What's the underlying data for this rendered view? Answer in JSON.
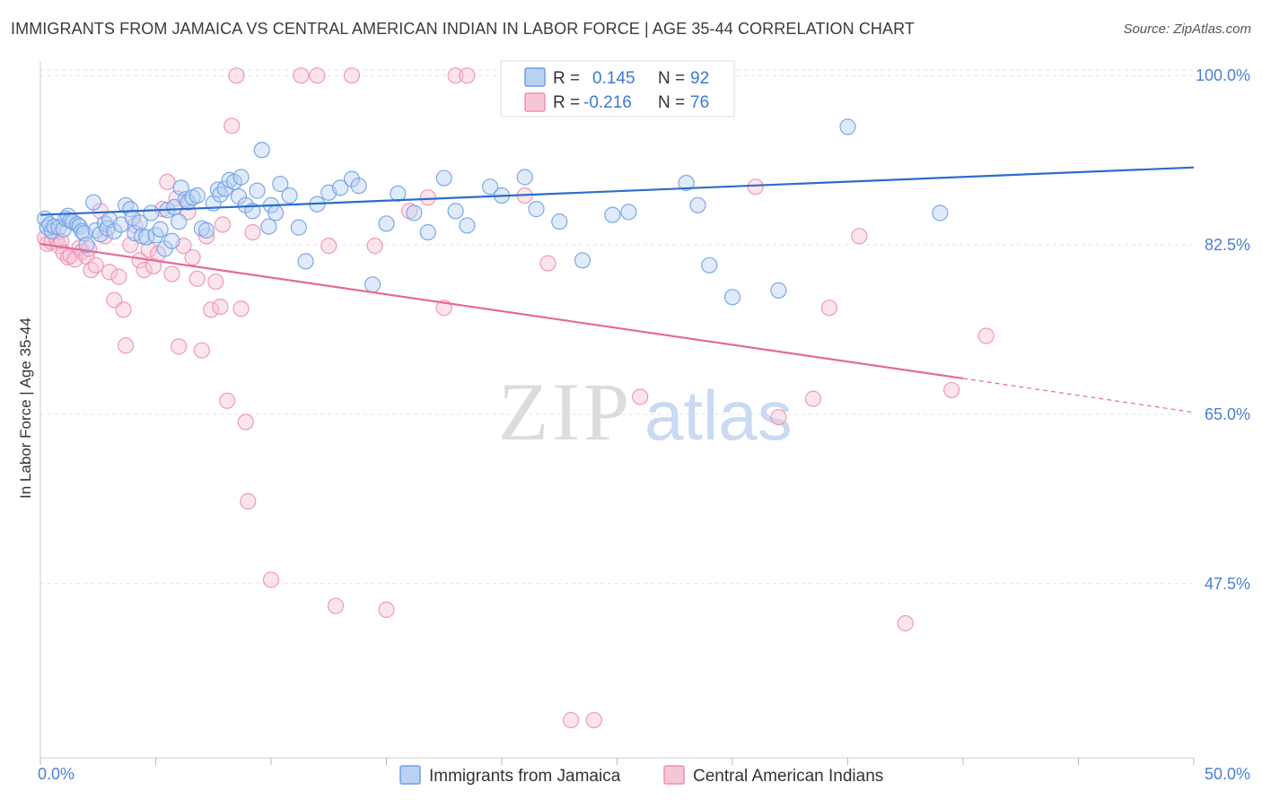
{
  "title": "IMMIGRANTS FROM JAMAICA VS CENTRAL AMERICAN INDIAN IN LABOR FORCE | AGE 35-44 CORRELATION CHART",
  "source": "Source: ZipAtlas.com",
  "watermark": {
    "zip": "ZIP",
    "atlas": "atlas"
  },
  "colors": {
    "blue": "#6fa0e6",
    "blue_fill": "#b9d1f3",
    "blue_line": "#2b6dcc",
    "pink": "#ef8fb0",
    "pink_fill": "#f7c6d6",
    "pink_line": "#e76895"
  },
  "legend": {
    "r_label": "R =",
    "n_label": "N =",
    "series": [
      {
        "r": "0.145",
        "n": "92"
      },
      {
        "r": "-0.216",
        "n": "76"
      }
    ]
  },
  "chart_data": {
    "type": "scatter",
    "xlabel": "",
    "ylabel": "In Labor Force | Age 35-44",
    "xlim": [
      0,
      50
    ],
    "ylim": [
      29.5,
      101.5
    ],
    "x_tick_labels": [
      "0.0%",
      "50.0%"
    ],
    "y_ticks": [
      100,
      82.5,
      65,
      47.5
    ],
    "y_tick_labels": [
      "100.0%",
      "82.5%",
      "65.0%",
      "47.5%"
    ],
    "grid": true,
    "legend_position": "bottom",
    "series": [
      {
        "name": "Immigrants from Jamaica",
        "trend": {
          "x": [
            0,
            50
          ],
          "y": [
            85.6,
            90.5
          ]
        },
        "points": [
          [
            0.2,
            85.2
          ],
          [
            0.3,
            84.3
          ],
          [
            0.4,
            84.6
          ],
          [
            0.5,
            83.9
          ],
          [
            0.6,
            84.4
          ],
          [
            0.8,
            84.3
          ],
          [
            1.0,
            84.1
          ],
          [
            1.1,
            85.2
          ],
          [
            1.2,
            85.5
          ],
          [
            1.3,
            85.0
          ],
          [
            1.4,
            84.9
          ],
          [
            1.6,
            84.6
          ],
          [
            1.7,
            84.4
          ],
          [
            1.8,
            83.9
          ],
          [
            1.9,
            83.7
          ],
          [
            2.0,
            82.5
          ],
          [
            2.3,
            86.9
          ],
          [
            2.4,
            84.0
          ],
          [
            2.6,
            83.6
          ],
          [
            2.8,
            84.7
          ],
          [
            2.9,
            84.2
          ],
          [
            3.0,
            85.1
          ],
          [
            3.2,
            83.9
          ],
          [
            3.5,
            84.6
          ],
          [
            3.7,
            86.6
          ],
          [
            3.9,
            86.2
          ],
          [
            4.0,
            85.3
          ],
          [
            4.1,
            83.7
          ],
          [
            4.3,
            84.8
          ],
          [
            4.4,
            83.4
          ],
          [
            4.6,
            83.3
          ],
          [
            4.8,
            85.8
          ],
          [
            5.0,
            83.5
          ],
          [
            5.2,
            84.1
          ],
          [
            5.4,
            82.1
          ],
          [
            5.5,
            86.1
          ],
          [
            5.7,
            82.9
          ],
          [
            5.8,
            86.4
          ],
          [
            6.0,
            84.9
          ],
          [
            6.1,
            88.4
          ],
          [
            6.3,
            87.2
          ],
          [
            6.4,
            86.9
          ],
          [
            6.6,
            87.4
          ],
          [
            6.8,
            87.6
          ],
          [
            7.0,
            84.2
          ],
          [
            7.2,
            84.0
          ],
          [
            7.5,
            86.8
          ],
          [
            7.7,
            88.2
          ],
          [
            7.8,
            87.7
          ],
          [
            8.0,
            88.3
          ],
          [
            8.2,
            89.2
          ],
          [
            8.4,
            89.0
          ],
          [
            8.6,
            87.5
          ],
          [
            8.7,
            89.5
          ],
          [
            8.9,
            86.6
          ],
          [
            9.2,
            86.0
          ],
          [
            9.4,
            88.1
          ],
          [
            9.6,
            92.3
          ],
          [
            9.9,
            84.4
          ],
          [
            10.0,
            86.6
          ],
          [
            10.2,
            85.8
          ],
          [
            10.4,
            88.8
          ],
          [
            10.8,
            87.6
          ],
          [
            11.2,
            84.3
          ],
          [
            11.5,
            80.8
          ],
          [
            12.0,
            86.7
          ],
          [
            12.5,
            87.9
          ],
          [
            13.0,
            88.4
          ],
          [
            13.5,
            89.3
          ],
          [
            13.8,
            88.6
          ],
          [
            14.4,
            78.4
          ],
          [
            15.0,
            84.7
          ],
          [
            15.5,
            87.8
          ],
          [
            16.2,
            85.8
          ],
          [
            16.8,
            83.8
          ],
          [
            17.5,
            89.4
          ],
          [
            18.0,
            86.0
          ],
          [
            18.5,
            84.5
          ],
          [
            19.5,
            88.5
          ],
          [
            20.0,
            87.6
          ],
          [
            21.0,
            89.5
          ],
          [
            21.5,
            86.2
          ],
          [
            22.5,
            84.9
          ],
          [
            23.5,
            80.9
          ],
          [
            24.8,
            85.6
          ],
          [
            25.5,
            85.9
          ],
          [
            28.0,
            88.9
          ],
          [
            28.5,
            86.6
          ],
          [
            29.0,
            80.4
          ],
          [
            30.0,
            77.1
          ],
          [
            32.0,
            77.8
          ],
          [
            35.0,
            94.7
          ],
          [
            39.0,
            85.8
          ]
        ]
      },
      {
        "name": "Central American Indians",
        "trend": {
          "x": [
            0,
            40
          ],
          "y": [
            82.6,
            68.7
          ]
        },
        "trend_dashed": {
          "x": [
            40,
            50
          ],
          "y": [
            68.7,
            65.2
          ]
        },
        "points": [
          [
            0.2,
            83.2
          ],
          [
            0.3,
            82.6
          ],
          [
            0.5,
            82.8
          ],
          [
            0.7,
            83.1
          ],
          [
            0.8,
            82.4
          ],
          [
            0.9,
            82.9
          ],
          [
            1.0,
            81.7
          ],
          [
            1.2,
            81.2
          ],
          [
            1.3,
            81.4
          ],
          [
            1.5,
            81.0
          ],
          [
            1.7,
            82.2
          ],
          [
            1.8,
            81.8
          ],
          [
            2.0,
            81.3
          ],
          [
            2.1,
            82.1
          ],
          [
            2.2,
            79.9
          ],
          [
            2.4,
            80.4
          ],
          [
            2.6,
            86.0
          ],
          [
            2.8,
            83.4
          ],
          [
            3.0,
            79.7
          ],
          [
            3.2,
            76.8
          ],
          [
            3.4,
            79.2
          ],
          [
            3.6,
            75.8
          ],
          [
            3.7,
            72.1
          ],
          [
            3.9,
            82.5
          ],
          [
            4.1,
            84.5
          ],
          [
            4.3,
            80.9
          ],
          [
            4.5,
            79.9
          ],
          [
            4.7,
            82.0
          ],
          [
            4.9,
            80.3
          ],
          [
            5.1,
            81.6
          ],
          [
            5.3,
            86.2
          ],
          [
            5.5,
            89.0
          ],
          [
            5.7,
            79.5
          ],
          [
            5.9,
            87.3
          ],
          [
            6.0,
            72.0
          ],
          [
            6.2,
            82.4
          ],
          [
            6.4,
            85.9
          ],
          [
            6.6,
            81.2
          ],
          [
            6.8,
            79.0
          ],
          [
            7.0,
            71.6
          ],
          [
            7.2,
            83.4
          ],
          [
            7.4,
            75.8
          ],
          [
            7.6,
            78.7
          ],
          [
            7.8,
            76.1
          ],
          [
            7.9,
            84.6
          ],
          [
            8.1,
            66.4
          ],
          [
            8.3,
            94.8
          ],
          [
            8.5,
            100.0
          ],
          [
            8.7,
            75.9
          ],
          [
            8.9,
            64.2
          ],
          [
            9.0,
            56.0
          ],
          [
            9.2,
            83.8
          ],
          [
            10.0,
            47.9
          ],
          [
            11.3,
            100.0
          ],
          [
            12.0,
            100.0
          ],
          [
            12.5,
            82.4
          ],
          [
            12.8,
            45.2
          ],
          [
            13.5,
            100.0
          ],
          [
            14.5,
            82.4
          ],
          [
            15.0,
            44.8
          ],
          [
            16.0,
            86.0
          ],
          [
            16.8,
            87.4
          ],
          [
            17.5,
            76.0
          ],
          [
            18.0,
            100.0
          ],
          [
            18.5,
            100.0
          ],
          [
            21.0,
            87.6
          ],
          [
            22.0,
            80.6
          ],
          [
            23.0,
            33.4
          ],
          [
            24.0,
            33.4
          ],
          [
            26.0,
            66.8
          ],
          [
            27.0,
            100.0
          ],
          [
            31.0,
            88.5
          ],
          [
            32.0,
            64.7
          ],
          [
            33.5,
            66.6
          ],
          [
            34.2,
            76.0
          ],
          [
            35.5,
            83.4
          ],
          [
            37.5,
            43.4
          ],
          [
            39.5,
            67.5
          ],
          [
            41.0,
            73.1
          ]
        ]
      }
    ]
  }
}
